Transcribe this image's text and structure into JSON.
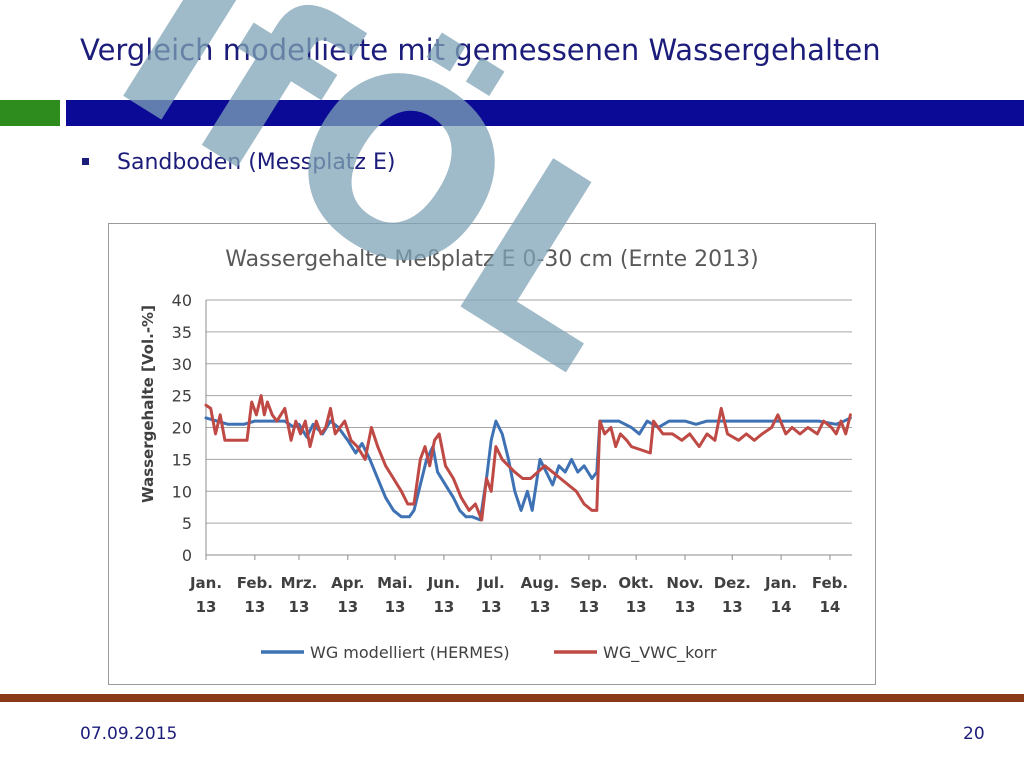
{
  "slide": {
    "title": "Vergleich modellierte mit gemessenen Wassergehalten",
    "bullet": "Sandboden (Messplatz E)",
    "footer_date": "07.09.2015",
    "page_number": "20",
    "watermark_text": "IfÖL"
  },
  "colors": {
    "title": "#1c1c7a",
    "accent_green": "#2e8b1e",
    "accent_blue": "#0a0a96",
    "footer_line": "#8b3a17",
    "series_modelliert": "#3f72b4",
    "series_vwc": "#bf4a45",
    "watermark": "#7fa3b6"
  },
  "chart_data": {
    "type": "line",
    "title": "Wassergehalte Meßplatz E 0-30 cm (Ernte 2013)",
    "xlabel": "",
    "ylabel": "Wassergehalte [Vol.-%]",
    "ylim": [
      0,
      40
    ],
    "yticks": [
      0,
      5,
      10,
      15,
      20,
      25,
      30,
      35,
      40
    ],
    "grid": true,
    "legend_position": "bottom",
    "x_domain": [
      "2013-01-01",
      "2014-02-15"
    ],
    "x_ticks": [
      {
        "date": "2013-01-01",
        "line1": "Jan.",
        "line2": "13"
      },
      {
        "date": "2013-02-01",
        "line1": "Feb.",
        "line2": "13"
      },
      {
        "date": "2013-03-01",
        "line1": "Mrz.",
        "line2": "13"
      },
      {
        "date": "2013-04-01",
        "line1": "Apr.",
        "line2": "13"
      },
      {
        "date": "2013-05-01",
        "line1": "Mai.",
        "line2": "13"
      },
      {
        "date": "2013-06-01",
        "line1": "Jun.",
        "line2": "13"
      },
      {
        "date": "2013-07-01",
        "line1": "Jul.",
        "line2": "13"
      },
      {
        "date": "2013-08-01",
        "line1": "Aug.",
        "line2": "13"
      },
      {
        "date": "2013-09-01",
        "line1": "Sep.",
        "line2": "13"
      },
      {
        "date": "2013-10-01",
        "line1": "Okt.",
        "line2": "13"
      },
      {
        "date": "2013-11-01",
        "line1": "Nov.",
        "line2": "13"
      },
      {
        "date": "2013-12-01",
        "line1": "Dez.",
        "line2": "13"
      },
      {
        "date": "2014-01-01",
        "line1": "Jan.",
        "line2": "14"
      },
      {
        "date": "2014-02-01",
        "line1": "Feb.",
        "line2": "14"
      }
    ],
    "series": [
      {
        "name": "WG modelliert (HERMES)",
        "color": "#3f72b4",
        "points": [
          [
            "2013-01-01",
            21.5
          ],
          [
            "2013-01-08",
            21
          ],
          [
            "2013-01-15",
            20.5
          ],
          [
            "2013-01-25",
            20.5
          ],
          [
            "2013-02-01",
            21
          ],
          [
            "2013-02-12",
            21
          ],
          [
            "2013-02-20",
            21
          ],
          [
            "2013-02-26",
            20
          ],
          [
            "2013-03-01",
            20.5
          ],
          [
            "2013-03-06",
            18.5
          ],
          [
            "2013-03-10",
            20.5
          ],
          [
            "2013-03-16",
            19
          ],
          [
            "2013-03-21",
            21
          ],
          [
            "2013-03-26",
            20
          ],
          [
            "2013-04-01",
            18
          ],
          [
            "2013-04-06",
            16
          ],
          [
            "2013-04-10",
            17.5
          ],
          [
            "2013-04-15",
            15
          ],
          [
            "2013-04-20",
            12
          ],
          [
            "2013-04-25",
            9
          ],
          [
            "2013-04-30",
            7
          ],
          [
            "2013-05-05",
            6
          ],
          [
            "2013-05-10",
            6
          ],
          [
            "2013-05-13",
            7
          ],
          [
            "2013-05-17",
            11
          ],
          [
            "2013-05-21",
            15
          ],
          [
            "2013-05-25",
            17
          ],
          [
            "2013-05-28",
            13
          ],
          [
            "2013-06-02",
            11
          ],
          [
            "2013-06-07",
            9
          ],
          [
            "2013-06-11",
            7
          ],
          [
            "2013-06-15",
            6
          ],
          [
            "2013-06-19",
            6
          ],
          [
            "2013-06-24",
            5.5
          ],
          [
            "2013-06-28",
            12
          ],
          [
            "2013-07-01",
            18
          ],
          [
            "2013-07-04",
            21
          ],
          [
            "2013-07-08",
            19
          ],
          [
            "2013-07-12",
            15
          ],
          [
            "2013-07-16",
            10
          ],
          [
            "2013-07-20",
            7
          ],
          [
            "2013-07-24",
            10
          ],
          [
            "2013-07-27",
            7
          ],
          [
            "2013-08-01",
            15
          ],
          [
            "2013-08-05",
            13
          ],
          [
            "2013-08-09",
            11
          ],
          [
            "2013-08-13",
            14
          ],
          [
            "2013-08-17",
            13
          ],
          [
            "2013-08-21",
            15
          ],
          [
            "2013-08-25",
            13
          ],
          [
            "2013-08-29",
            14
          ],
          [
            "2013-09-03",
            12
          ],
          [
            "2013-09-06",
            13
          ],
          [
            "2013-09-08",
            21
          ],
          [
            "2013-09-12",
            21
          ],
          [
            "2013-09-20",
            21
          ],
          [
            "2013-09-28",
            20
          ],
          [
            "2013-10-03",
            19
          ],
          [
            "2013-10-08",
            21
          ],
          [
            "2013-10-15",
            20
          ],
          [
            "2013-10-22",
            21
          ],
          [
            "2013-11-01",
            21
          ],
          [
            "2013-11-08",
            20.5
          ],
          [
            "2013-11-15",
            21
          ],
          [
            "2013-11-25",
            21
          ],
          [
            "2013-12-01",
            21
          ],
          [
            "2013-12-15",
            21
          ],
          [
            "2014-01-01",
            21
          ],
          [
            "2014-01-15",
            21
          ],
          [
            "2014-01-25",
            21
          ],
          [
            "2014-02-05",
            20.5
          ],
          [
            "2014-02-10",
            21
          ],
          [
            "2014-02-14",
            21.5
          ]
        ]
      },
      {
        "name": "WG_VWC_korr",
        "color": "#bf4a45",
        "points": [
          [
            "2013-01-01",
            23.5
          ],
          [
            "2013-01-04",
            23
          ],
          [
            "2013-01-07",
            19
          ],
          [
            "2013-01-10",
            22
          ],
          [
            "2013-01-13",
            18
          ],
          [
            "2013-01-17",
            18
          ],
          [
            "2013-01-22",
            18
          ],
          [
            "2013-01-27",
            18
          ],
          [
            "2013-01-30",
            24
          ],
          [
            "2013-02-02",
            22
          ],
          [
            "2013-02-05",
            25
          ],
          [
            "2013-02-07",
            22
          ],
          [
            "2013-02-09",
            24
          ],
          [
            "2013-02-12",
            22
          ],
          [
            "2013-02-15",
            21
          ],
          [
            "2013-02-20",
            23
          ],
          [
            "2013-02-24",
            18
          ],
          [
            "2013-02-27",
            21
          ],
          [
            "2013-03-02",
            19
          ],
          [
            "2013-03-05",
            21
          ],
          [
            "2013-03-08",
            17
          ],
          [
            "2013-03-12",
            21
          ],
          [
            "2013-03-15",
            19
          ],
          [
            "2013-03-18",
            20
          ],
          [
            "2013-03-21",
            23
          ],
          [
            "2013-03-24",
            19
          ],
          [
            "2013-03-27",
            20
          ],
          [
            "2013-03-30",
            21
          ],
          [
            "2013-04-03",
            18
          ],
          [
            "2013-04-07",
            17
          ],
          [
            "2013-04-12",
            15
          ],
          [
            "2013-04-16",
            20
          ],
          [
            "2013-04-20",
            17
          ],
          [
            "2013-04-25",
            14
          ],
          [
            "2013-04-30",
            12
          ],
          [
            "2013-05-05",
            10
          ],
          [
            "2013-05-09",
            8
          ],
          [
            "2013-05-13",
            8
          ],
          [
            "2013-05-17",
            15
          ],
          [
            "2013-05-20",
            17
          ],
          [
            "2013-05-23",
            14
          ],
          [
            "2013-05-26",
            18
          ],
          [
            "2013-05-29",
            19
          ],
          [
            "2013-06-02",
            14
          ],
          [
            "2013-06-07",
            12
          ],
          [
            "2013-06-12",
            9
          ],
          [
            "2013-06-17",
            7
          ],
          [
            "2013-06-21",
            8
          ],
          [
            "2013-06-25",
            5.5
          ],
          [
            "2013-06-28",
            12
          ],
          [
            "2013-07-01",
            10
          ],
          [
            "2013-07-04",
            17
          ],
          [
            "2013-07-08",
            15
          ],
          [
            "2013-07-12",
            14
          ],
          [
            "2013-07-16",
            13
          ],
          [
            "2013-07-21",
            12
          ],
          [
            "2013-07-26",
            12
          ],
          [
            "2013-08-04",
            14
          ],
          [
            "2013-08-09",
            13
          ],
          [
            "2013-08-14",
            12
          ],
          [
            "2013-08-19",
            11
          ],
          [
            "2013-08-24",
            10
          ],
          [
            "2013-08-29",
            8
          ],
          [
            "2013-09-03",
            7
          ],
          [
            "2013-09-06",
            7
          ],
          [
            "2013-09-08",
            21
          ],
          [
            "2013-09-11",
            19
          ],
          [
            "2013-09-15",
            20
          ],
          [
            "2013-09-18",
            17
          ],
          [
            "2013-09-21",
            19
          ],
          [
            "2013-09-25",
            18
          ],
          [
            "2013-09-28",
            17
          ],
          [
            "2013-10-10",
            16
          ],
          [
            "2013-10-12",
            21
          ],
          [
            "2013-10-18",
            19
          ],
          [
            "2013-10-24",
            19
          ],
          [
            "2013-10-30",
            18
          ],
          [
            "2013-11-04",
            19
          ],
          [
            "2013-11-10",
            17
          ],
          [
            "2013-11-15",
            19
          ],
          [
            "2013-11-20",
            18
          ],
          [
            "2013-11-24",
            23
          ],
          [
            "2013-11-28",
            19
          ],
          [
            "2013-12-05",
            18
          ],
          [
            "2013-12-10",
            19
          ],
          [
            "2013-12-15",
            18
          ],
          [
            "2013-12-20",
            19
          ],
          [
            "2013-12-26",
            20
          ],
          [
            "2013-12-30",
            22
          ],
          [
            "2014-01-04",
            19
          ],
          [
            "2014-01-08",
            20
          ],
          [
            "2014-01-13",
            19
          ],
          [
            "2014-01-18",
            20
          ],
          [
            "2014-01-24",
            19
          ],
          [
            "2014-01-28",
            21
          ],
          [
            "2014-02-02",
            20
          ],
          [
            "2014-02-05",
            19
          ],
          [
            "2014-02-08",
            21
          ],
          [
            "2014-02-11",
            19
          ],
          [
            "2014-02-14",
            22
          ]
        ]
      }
    ]
  }
}
